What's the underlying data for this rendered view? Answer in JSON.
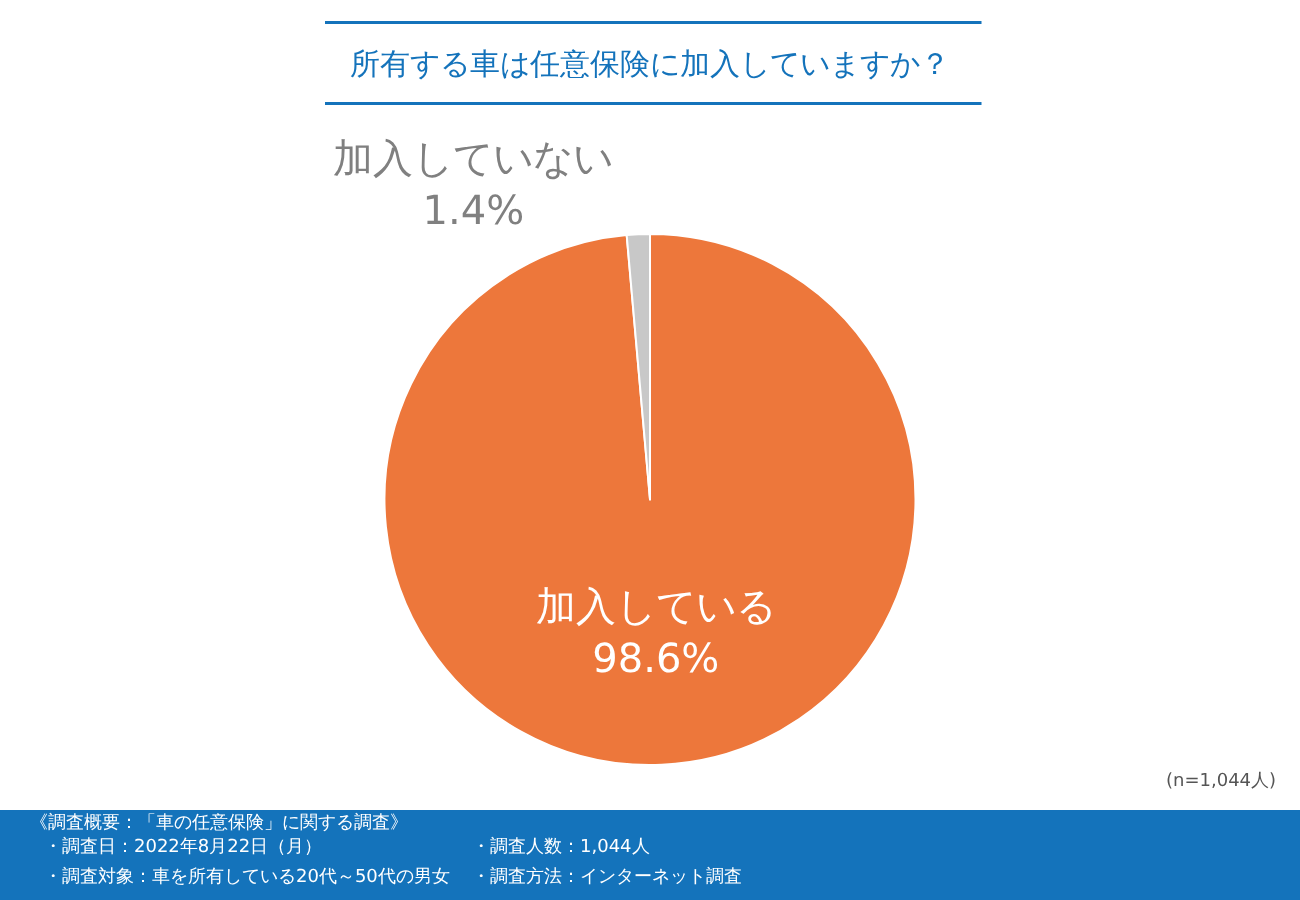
{
  "chart_data": {
    "type": "pie",
    "title": "所有する車は任意保険に加入していますか？",
    "categories": [
      "加入している",
      "加入していない"
    ],
    "values": [
      98.6,
      1.4
    ],
    "colors": [
      "#ed773b",
      "#c8c8c8"
    ],
    "value_labels": [
      "98.6%",
      "1.4%"
    ],
    "legend": false,
    "annotations": [
      "(n=1,044人)",
      "《調査概要：「車の任意保険」に関する調査》",
      "・調査日：2022年8月22日（月）",
      "・調査対象：車を所有している20代～50代の男女",
      "・調査人数：1,044人",
      "・調査方法：インターネット調査"
    ]
  }
}
